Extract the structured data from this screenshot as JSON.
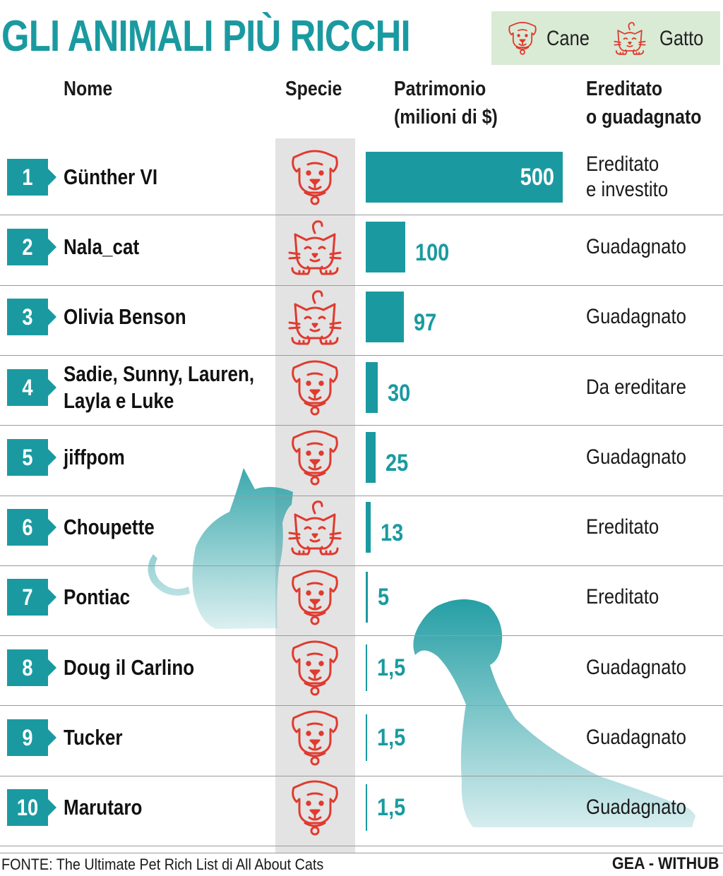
{
  "title": "GLI ANIMALI PIÙ RICCHI",
  "legend": {
    "dog_label": "Cane",
    "cat_label": "Gatto",
    "icon_color": "#e03a2f"
  },
  "headers": {
    "name": "Nome",
    "species": "Specie",
    "wealth_line1": "Patrimonio",
    "wealth_line2": "(milioni di $)",
    "origin_line1": "Ereditato",
    "origin_line2": "o guadagnato"
  },
  "colors": {
    "accent": "#1a9aa0",
    "legend_bg": "#d9ead5",
    "species_col": "#e3e3e3",
    "icon": "#e03a2f"
  },
  "chart_data": {
    "type": "bar",
    "orientation": "horizontal",
    "title": "GLI ANIMALI PIÙ RICCHI",
    "categories": [
      "Günther VI",
      "Nala_cat",
      "Olivia Benson",
      "Sadie, Sunny, Lauren, Layla e Luke",
      "jiffpom",
      "Choupette",
      "Pontiac",
      "Doug il Carlino",
      "Tucker",
      "Marutaro"
    ],
    "values": [
      500,
      100,
      97,
      30,
      25,
      13,
      5,
      1.5,
      1.5,
      1.5
    ],
    "value_labels": [
      "500",
      "100",
      "97",
      "30",
      "25",
      "13",
      "5",
      "1,5",
      "1,5",
      "1,5"
    ],
    "xlim": [
      0,
      500
    ],
    "grid": false
  },
  "rows": [
    {
      "rank": "1",
      "name_lines": [
        "Günther VI"
      ],
      "species": "dog",
      "wealth": 500,
      "wealth_label": "500",
      "origin_lines": [
        "Ereditato",
        "e investito"
      ]
    },
    {
      "rank": "2",
      "name_lines": [
        "Nala_cat"
      ],
      "species": "cat",
      "wealth": 100,
      "wealth_label": "100",
      "origin_lines": [
        "Guadagnato"
      ]
    },
    {
      "rank": "3",
      "name_lines": [
        "Olivia Benson"
      ],
      "species": "cat",
      "wealth": 97,
      "wealth_label": "97",
      "origin_lines": [
        "Guadagnato"
      ]
    },
    {
      "rank": "4",
      "name_lines": [
        "Sadie, Sunny, Lauren,",
        "Layla e Luke"
      ],
      "species": "dog",
      "wealth": 30,
      "wealth_label": "30",
      "origin_lines": [
        "Da ereditare"
      ]
    },
    {
      "rank": "5",
      "name_lines": [
        "jiffpom"
      ],
      "species": "dog",
      "wealth": 25,
      "wealth_label": "25",
      "origin_lines": [
        "Guadagnato"
      ]
    },
    {
      "rank": "6",
      "name_lines": [
        "Choupette"
      ],
      "species": "cat",
      "wealth": 13,
      "wealth_label": "13",
      "origin_lines": [
        "Ereditato"
      ]
    },
    {
      "rank": "7",
      "name_lines": [
        "Pontiac"
      ],
      "species": "dog",
      "wealth": 5,
      "wealth_label": "5",
      "origin_lines": [
        "Ereditato"
      ]
    },
    {
      "rank": "8",
      "name_lines": [
        "Doug il Carlino"
      ],
      "species": "dog",
      "wealth": 1.5,
      "wealth_label": "1,5",
      "origin_lines": [
        "Guadagnato"
      ]
    },
    {
      "rank": "9",
      "name_lines": [
        "Tucker"
      ],
      "species": "dog",
      "wealth": 1.5,
      "wealth_label": "1,5",
      "origin_lines": [
        "Guadagnato"
      ]
    },
    {
      "rank": "10",
      "name_lines": [
        "Marutaro"
      ],
      "species": "dog",
      "wealth": 1.5,
      "wealth_label": "1,5",
      "origin_lines": [
        "Guadagnato"
      ]
    }
  ],
  "footer": {
    "source": "FONTE: The Ultimate Pet Rich List di All About Cats",
    "credit": "GEA - WITHUB"
  }
}
